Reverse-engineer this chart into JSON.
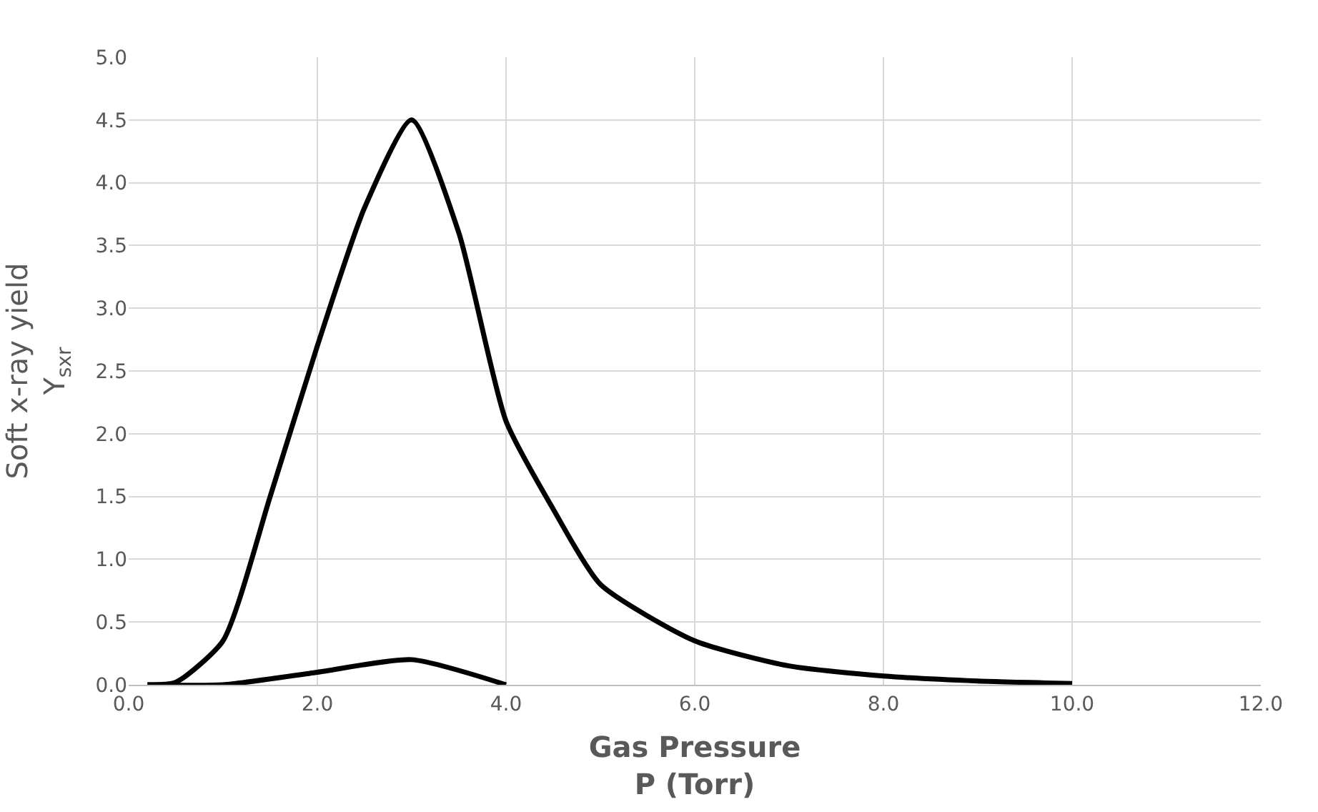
{
  "chart_data": {
    "type": "line",
    "xlabel": "Gas Pressure\nP (Torr)",
    "ylabel": "Soft x-ray yield\nY$_{sxr}$",
    "series": [
      {
        "color": "#000000",
        "x": [
          0.2,
          0.5,
          1.0,
          1.5,
          2.0,
          2.5,
          3.0,
          3.5,
          4.0,
          4.5,
          5.0,
          6.0,
          7.0,
          8.0,
          9.0,
          10.0
        ],
        "values": [
          0,
          0.02,
          0.35,
          1.5,
          2.7,
          3.8,
          4.5,
          3.6,
          2.1,
          1.4,
          0.8,
          0.35,
          0.15,
          0.07,
          0.03,
          0.01
        ]
      },
      {
        "color": "#000000",
        "x": [
          0.2,
          1.0,
          2.0,
          3.0,
          4.0
        ],
        "values": [
          0,
          0,
          0.1,
          0.2,
          0
        ]
      }
    ],
    "xlim": [
      0,
      12
    ],
    "xticks": [
      {
        "value": 0,
        "label": "0.0"
      },
      {
        "value": 2,
        "label": "2.0"
      },
      {
        "value": 4,
        "label": "4.0"
      },
      {
        "value": 6,
        "label": "6.0"
      },
      {
        "value": 8,
        "label": "8.0"
      },
      {
        "value": 10,
        "label": "10.0"
      },
      {
        "value": 12,
        "label": "12.0"
      }
    ],
    "ylim": [
      0,
      5
    ],
    "yticks": [
      {
        "value": 0,
        "label": "0.0"
      },
      {
        "value": 0.5,
        "label": "0.5"
      },
      {
        "value": 1,
        "label": "1.0"
      },
      {
        "value": 1.5,
        "label": "1.5"
      },
      {
        "value": 2,
        "label": "2.0"
      },
      {
        "value": 2.5,
        "label": "2.5"
      },
      {
        "value": 3,
        "label": "3.0"
      },
      {
        "value": 3.5,
        "label": "3.5"
      },
      {
        "value": 4,
        "label": "4.0"
      },
      {
        "value": 4.5,
        "label": "4.5"
      },
      {
        "value": 5,
        "label": "5.0"
      }
    ],
    "grid": true,
    "marker": "none",
    "line_style": "solid",
    "legend": false
  }
}
